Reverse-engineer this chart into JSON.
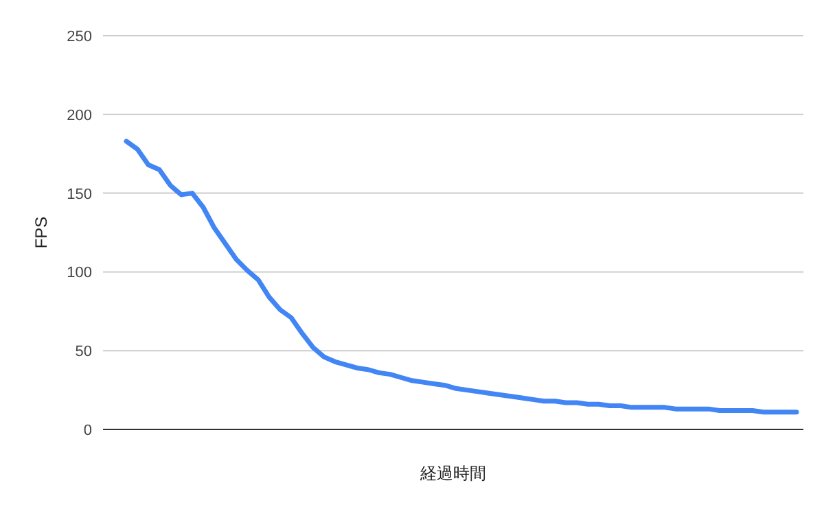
{
  "chart_data": {
    "type": "line",
    "xlabel": "経過時間",
    "ylabel": "FPS",
    "categories": [
      null,
      null,
      null,
      null,
      null,
      null,
      null,
      null,
      null,
      null,
      null,
      null,
      null,
      null,
      null,
      null,
      null,
      null,
      null,
      null,
      null,
      null,
      null,
      null,
      null,
      null,
      null,
      null,
      null,
      null,
      null,
      null,
      null,
      null,
      null,
      null,
      null,
      null,
      null,
      null,
      null,
      null,
      null,
      null,
      null,
      null,
      null,
      null,
      null,
      null,
      null,
      null,
      null,
      null,
      null,
      null,
      null,
      null,
      null,
      null,
      null,
      null
    ],
    "series": [
      {
        "color": "#4285f4",
        "values": [
          183,
          178,
          168,
          165,
          155,
          149,
          150,
          141,
          128,
          118,
          108,
          101,
          95,
          84,
          76,
          71,
          61,
          52,
          46,
          43,
          41,
          39,
          38,
          36,
          35,
          33,
          31,
          30,
          29,
          28,
          26,
          25,
          24,
          23,
          22,
          21,
          20,
          19,
          18,
          18,
          17,
          17,
          16,
          16,
          15,
          15,
          14,
          14,
          14,
          14,
          13,
          13,
          13,
          13,
          12,
          12,
          12,
          12,
          11,
          11,
          11,
          11
        ]
      }
    ],
    "ylim": [
      0,
      250
    ],
    "yticks": [
      0,
      50,
      100,
      150,
      200,
      250
    ],
    "grid": "y",
    "tick_labels": "y",
    "marker": "none",
    "line_style": "solid"
  }
}
